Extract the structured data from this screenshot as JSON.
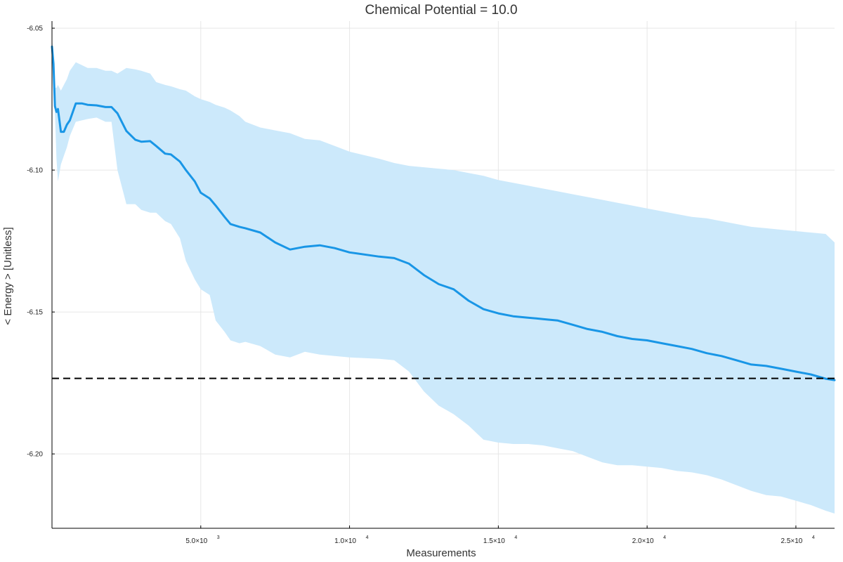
{
  "chart_data": {
    "type": "line",
    "title": "Chemical Potential = 10.0",
    "xlabel": "Measurements",
    "ylabel": "< Energy > [Unitless]",
    "xlim": [
      0,
      26300
    ],
    "ylim": [
      -6.2262,
      -6.0475
    ],
    "grid": true,
    "legend": "none",
    "colors": {
      "line": "#1996e6",
      "band": "#cce9fb",
      "reference": "#000000"
    },
    "x_ticks": [
      {
        "value": 5000,
        "mantissa": "5.0×10",
        "exponent": "3"
      },
      {
        "value": 10000,
        "mantissa": "1.0×10",
        "exponent": "4"
      },
      {
        "value": 15000,
        "mantissa": "1.5×10",
        "exponent": "4"
      },
      {
        "value": 20000,
        "mantissa": "2.0×10",
        "exponent": "4"
      },
      {
        "value": 25000,
        "mantissa": "2.5×10",
        "exponent": "4"
      }
    ],
    "y_ticks": [
      {
        "value": -6.05,
        "label": "-6.05"
      },
      {
        "value": -6.1,
        "label": "-6.10"
      },
      {
        "value": -6.15,
        "label": "-6.15"
      },
      {
        "value": -6.2,
        "label": "-6.20"
      }
    ],
    "reference_line": {
      "y": -6.1734,
      "style": "dashed"
    },
    "series": [
      {
        "x": [
          0,
          50,
          100,
          150,
          200,
          300,
          400,
          500,
          600,
          800,
          1000,
          1200,
          1500,
          1800,
          2000,
          2200,
          2500,
          2800,
          3000,
          3300,
          3500,
          3800,
          4000,
          4300,
          4500,
          4800,
          5000,
          5300,
          5500,
          5800,
          6000,
          6300,
          6500,
          7000,
          7500,
          8000,
          8500,
          9000,
          9500,
          10000,
          11000,
          11500,
          12000,
          12500,
          13000,
          13500,
          14000,
          14500,
          15000,
          15500,
          16000,
          16500,
          17000,
          17500,
          18000,
          18500,
          19000,
          19500,
          20000,
          20500,
          21000,
          21500,
          22000,
          22500,
          23000,
          23500,
          24000,
          24500,
          25000,
          25500,
          26000,
          26300
        ],
        "y": [
          -6.0565,
          -6.0625,
          -6.0775,
          -6.0795,
          -6.0785,
          -6.0865,
          -6.0865,
          -6.084,
          -6.0825,
          -6.0765,
          -6.0765,
          -6.077,
          -6.0772,
          -6.0778,
          -6.0778,
          -6.08,
          -6.0862,
          -6.0893,
          -6.09,
          -6.0898,
          -6.0915,
          -6.0942,
          -6.0945,
          -6.097,
          -6.1,
          -6.104,
          -6.108,
          -6.11,
          -6.1125,
          -6.1165,
          -6.119,
          -6.12,
          -6.1205,
          -6.122,
          -6.1255,
          -6.128,
          -6.127,
          -6.1265,
          -6.1275,
          -6.129,
          -6.1305,
          -6.131,
          -6.133,
          -6.137,
          -6.1402,
          -6.142,
          -6.146,
          -6.149,
          -6.1505,
          -6.1515,
          -6.152,
          -6.1525,
          -6.153,
          -6.1545,
          -6.156,
          -6.157,
          -6.1585,
          -6.1595,
          -6.16,
          -6.161,
          -6.162,
          -6.163,
          -6.1645,
          -6.1655,
          -6.167,
          -6.1685,
          -6.169,
          -6.17,
          -6.171,
          -6.172,
          -6.1735,
          -6.174
        ],
        "lower": [
          -6.056,
          -6.066,
          -6.08,
          -6.096,
          -6.104,
          -6.098,
          -6.095,
          -6.092,
          -6.088,
          -6.083,
          -6.0825,
          -6.082,
          -6.0815,
          -6.083,
          -6.083,
          -6.1,
          -6.112,
          -6.112,
          -6.114,
          -6.115,
          -6.115,
          -6.118,
          -6.119,
          -6.124,
          -6.132,
          -6.1385,
          -6.142,
          -6.144,
          -6.153,
          -6.157,
          -6.16,
          -6.161,
          -6.1605,
          -6.162,
          -6.165,
          -6.166,
          -6.164,
          -6.165,
          -6.1655,
          -6.166,
          -6.1665,
          -6.167,
          -6.171,
          -6.178,
          -6.183,
          -6.186,
          -6.19,
          -6.195,
          -6.196,
          -6.1965,
          -6.1965,
          -6.197,
          -6.198,
          -6.199,
          -6.201,
          -6.203,
          -6.204,
          -6.204,
          -6.2045,
          -6.205,
          -6.206,
          -6.2065,
          -6.2075,
          -6.209,
          -6.211,
          -6.213,
          -6.2145,
          -6.215,
          -6.2165,
          -6.218,
          -6.22,
          -6.221
        ],
        "upper": [
          -6.054,
          -6.058,
          -6.071,
          -6.071,
          -6.07,
          -6.072,
          -6.07,
          -6.068,
          -6.065,
          -6.062,
          -6.063,
          -6.064,
          -6.064,
          -6.065,
          -6.065,
          -6.066,
          -6.064,
          -6.0645,
          -6.065,
          -6.066,
          -6.069,
          -6.07,
          -6.0705,
          -6.0715,
          -6.072,
          -6.074,
          -6.075,
          -6.076,
          -6.077,
          -6.078,
          -6.079,
          -6.081,
          -6.083,
          -6.085,
          -6.086,
          -6.087,
          -6.089,
          -6.0895,
          -6.0915,
          -6.0935,
          -6.096,
          -6.0975,
          -6.0985,
          -6.099,
          -6.0995,
          -6.1,
          -6.101,
          -6.102,
          -6.1035,
          -6.1045,
          -6.1055,
          -6.1065,
          -6.1075,
          -6.1085,
          -6.1095,
          -6.1105,
          -6.1115,
          -6.1125,
          -6.1135,
          -6.1145,
          -6.1155,
          -6.1165,
          -6.117,
          -6.118,
          -6.119,
          -6.12,
          -6.1205,
          -6.121,
          -6.1215,
          -6.122,
          -6.1225,
          -6.1255
        ]
      }
    ]
  }
}
